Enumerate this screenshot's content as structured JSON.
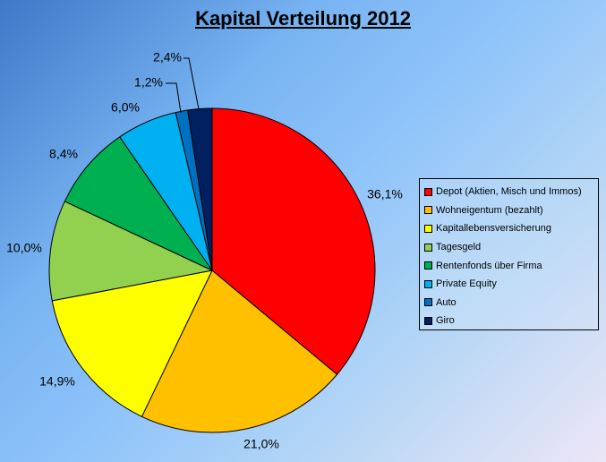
{
  "chart_data": {
    "type": "pie",
    "title": "Kapital Verteilung 2012",
    "legend_position": "right",
    "start_angle": "12 o'clock",
    "direction": "clockwise",
    "slices": [
      {
        "label": "Depot (Aktien, Misch und Immos)",
        "value": 36.1,
        "value_label": "36,1%",
        "color": "#ff0000"
      },
      {
        "label": "Wohneigentum (bezahlt)",
        "value": 21.0,
        "value_label": "21,0%",
        "color": "#ffc000"
      },
      {
        "label": "Kapitallebensversicherung",
        "value": 14.9,
        "value_label": "14,9%",
        "color": "#ffff00"
      },
      {
        "label": "Tagesgeld",
        "value": 10.0,
        "value_label": "10,0%",
        "color": "#92d050"
      },
      {
        "label": "Rentenfonds über Firma",
        "value": 8.4,
        "value_label": "8,4%",
        "color": "#00b050"
      },
      {
        "label": "Private Equity",
        "value": 6.0,
        "value_label": "6,0%",
        "color": "#00b0f0"
      },
      {
        "label": "Auto",
        "value": 1.2,
        "value_label": "1,2%",
        "color": "#0070c0"
      },
      {
        "label": "Giro",
        "value": 2.4,
        "value_label": "2,4%",
        "color": "#002060"
      }
    ]
  }
}
